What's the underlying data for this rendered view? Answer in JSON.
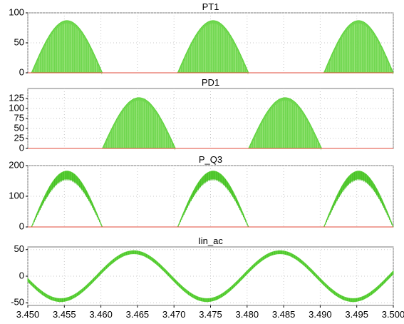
{
  "chart_data": [
    {
      "type": "area",
      "title": "PT1",
      "ylim": [
        0,
        100
      ],
      "yticks": [
        0,
        50,
        100
      ],
      "xlim": [
        3.45,
        3.5
      ],
      "series": [
        {
          "color": "#5fd33c",
          "style": "half-sine pulses (dense switching envelope)",
          "pulses": [
            {
              "x_start": 3.4505,
              "x_end": 3.4602,
              "peak": 87
            },
            {
              "x_start": 3.4705,
              "x_end": 3.4802,
              "peak": 87
            },
            {
              "x_start": 3.4905,
              "x_end": 3.5,
              "peak": 87
            }
          ]
        },
        {
          "color": "#e04a3a",
          "style": "baseline",
          "value": 0
        }
      ]
    },
    {
      "type": "area",
      "title": "PD1",
      "ylim": [
        0,
        150
      ],
      "yticks": [
        0,
        25,
        50,
        75,
        100,
        125
      ],
      "xlim": [
        3.45,
        3.5
      ],
      "series": [
        {
          "color": "#5fd33c",
          "style": "half-sine pulses (dense switching envelope)",
          "pulses": [
            {
              "x_start": 3.4602,
              "x_end": 3.4702,
              "peak": 127
            },
            {
              "x_start": 3.4802,
              "x_end": 3.4902,
              "peak": 127
            }
          ]
        },
        {
          "color": "#e04a3a",
          "style": "baseline",
          "value": 0
        }
      ]
    },
    {
      "type": "line",
      "title": "P_Q3",
      "ylim": [
        0,
        200
      ],
      "yticks": [
        0,
        100,
        200
      ],
      "xlim": [
        3.45,
        3.5
      ],
      "series": [
        {
          "color": "#5fd33c",
          "style": "half-sine pulses with ripple band",
          "pulses": [
            {
              "x_start": 3.4505,
              "x_end": 3.4602,
              "peak": 182
            },
            {
              "x_start": 3.4705,
              "x_end": 3.4802,
              "peak": 182
            },
            {
              "x_start": 3.4905,
              "x_end": 3.5,
              "peak": 182
            }
          ]
        },
        {
          "color": "#e04a3a",
          "style": "baseline",
          "value": 0
        }
      ]
    },
    {
      "type": "line",
      "title": "Iin_ac",
      "ylim": [
        -55,
        55
      ],
      "yticks": [
        -50,
        0,
        50
      ],
      "xlim": [
        3.45,
        3.5
      ],
      "xticks": [
        "3.450",
        "3.455",
        "3.460",
        "3.465",
        "3.470",
        "3.475",
        "3.480",
        "3.485",
        "3.490",
        "3.495",
        "3.500"
      ],
      "series": [
        {
          "color": "#5fd33c",
          "style": "sinusoid with ripple band",
          "amplitude": 45,
          "period": 0.02,
          "x_peak": 3.4645,
          "ripple": 3
        }
      ]
    }
  ]
}
